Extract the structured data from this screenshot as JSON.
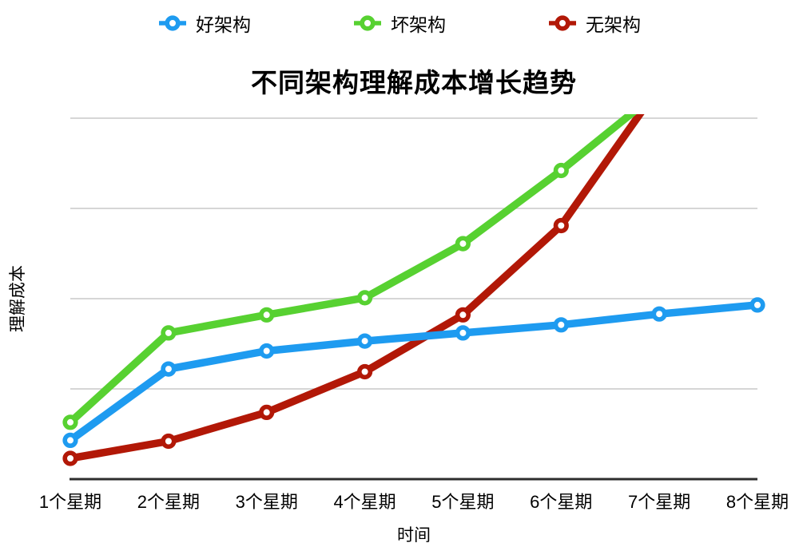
{
  "chart_data": {
    "type": "line",
    "title": "不同架构理解成本增长趋势",
    "xlabel": "时间",
    "ylabel": "理解成本",
    "categories": [
      "1个星期",
      "2个星期",
      "3个星期",
      "4个星期",
      "5个星期",
      "6个星期",
      "7个星期",
      "8个星期"
    ],
    "series": [
      {
        "key": "good-architecture",
        "name": "好架构",
        "color": "#1E9BF0",
        "values": [
          0.43,
          1.22,
          1.42,
          1.53,
          1.62,
          1.71,
          1.83,
          1.93
        ]
      },
      {
        "key": "bad-architecture",
        "name": "坏架构",
        "color": "#57D131",
        "values": [
          0.63,
          1.62,
          1.82,
          2.01,
          2.61,
          3.42,
          4.3,
          null
        ]
      },
      {
        "key": "no-architecture",
        "name": "无架构",
        "color": "#B21807",
        "values": [
          0.23,
          0.42,
          0.74,
          1.19,
          1.82,
          2.81,
          4.35,
          null
        ]
      }
    ],
    "ylim": [
      0,
      4
    ],
    "y_axis_tick_labels": "none",
    "grid": "horizontal",
    "gridline_color": "#C9C9C9",
    "axis_color": "#2E2E2E",
    "legend_position": "top",
    "note": "y-axis has no numeric labels; values estimated in gridline units (1 per gridline); 坏架构 and 无架构 lines exit the top of the plot between week 6 and 7"
  }
}
